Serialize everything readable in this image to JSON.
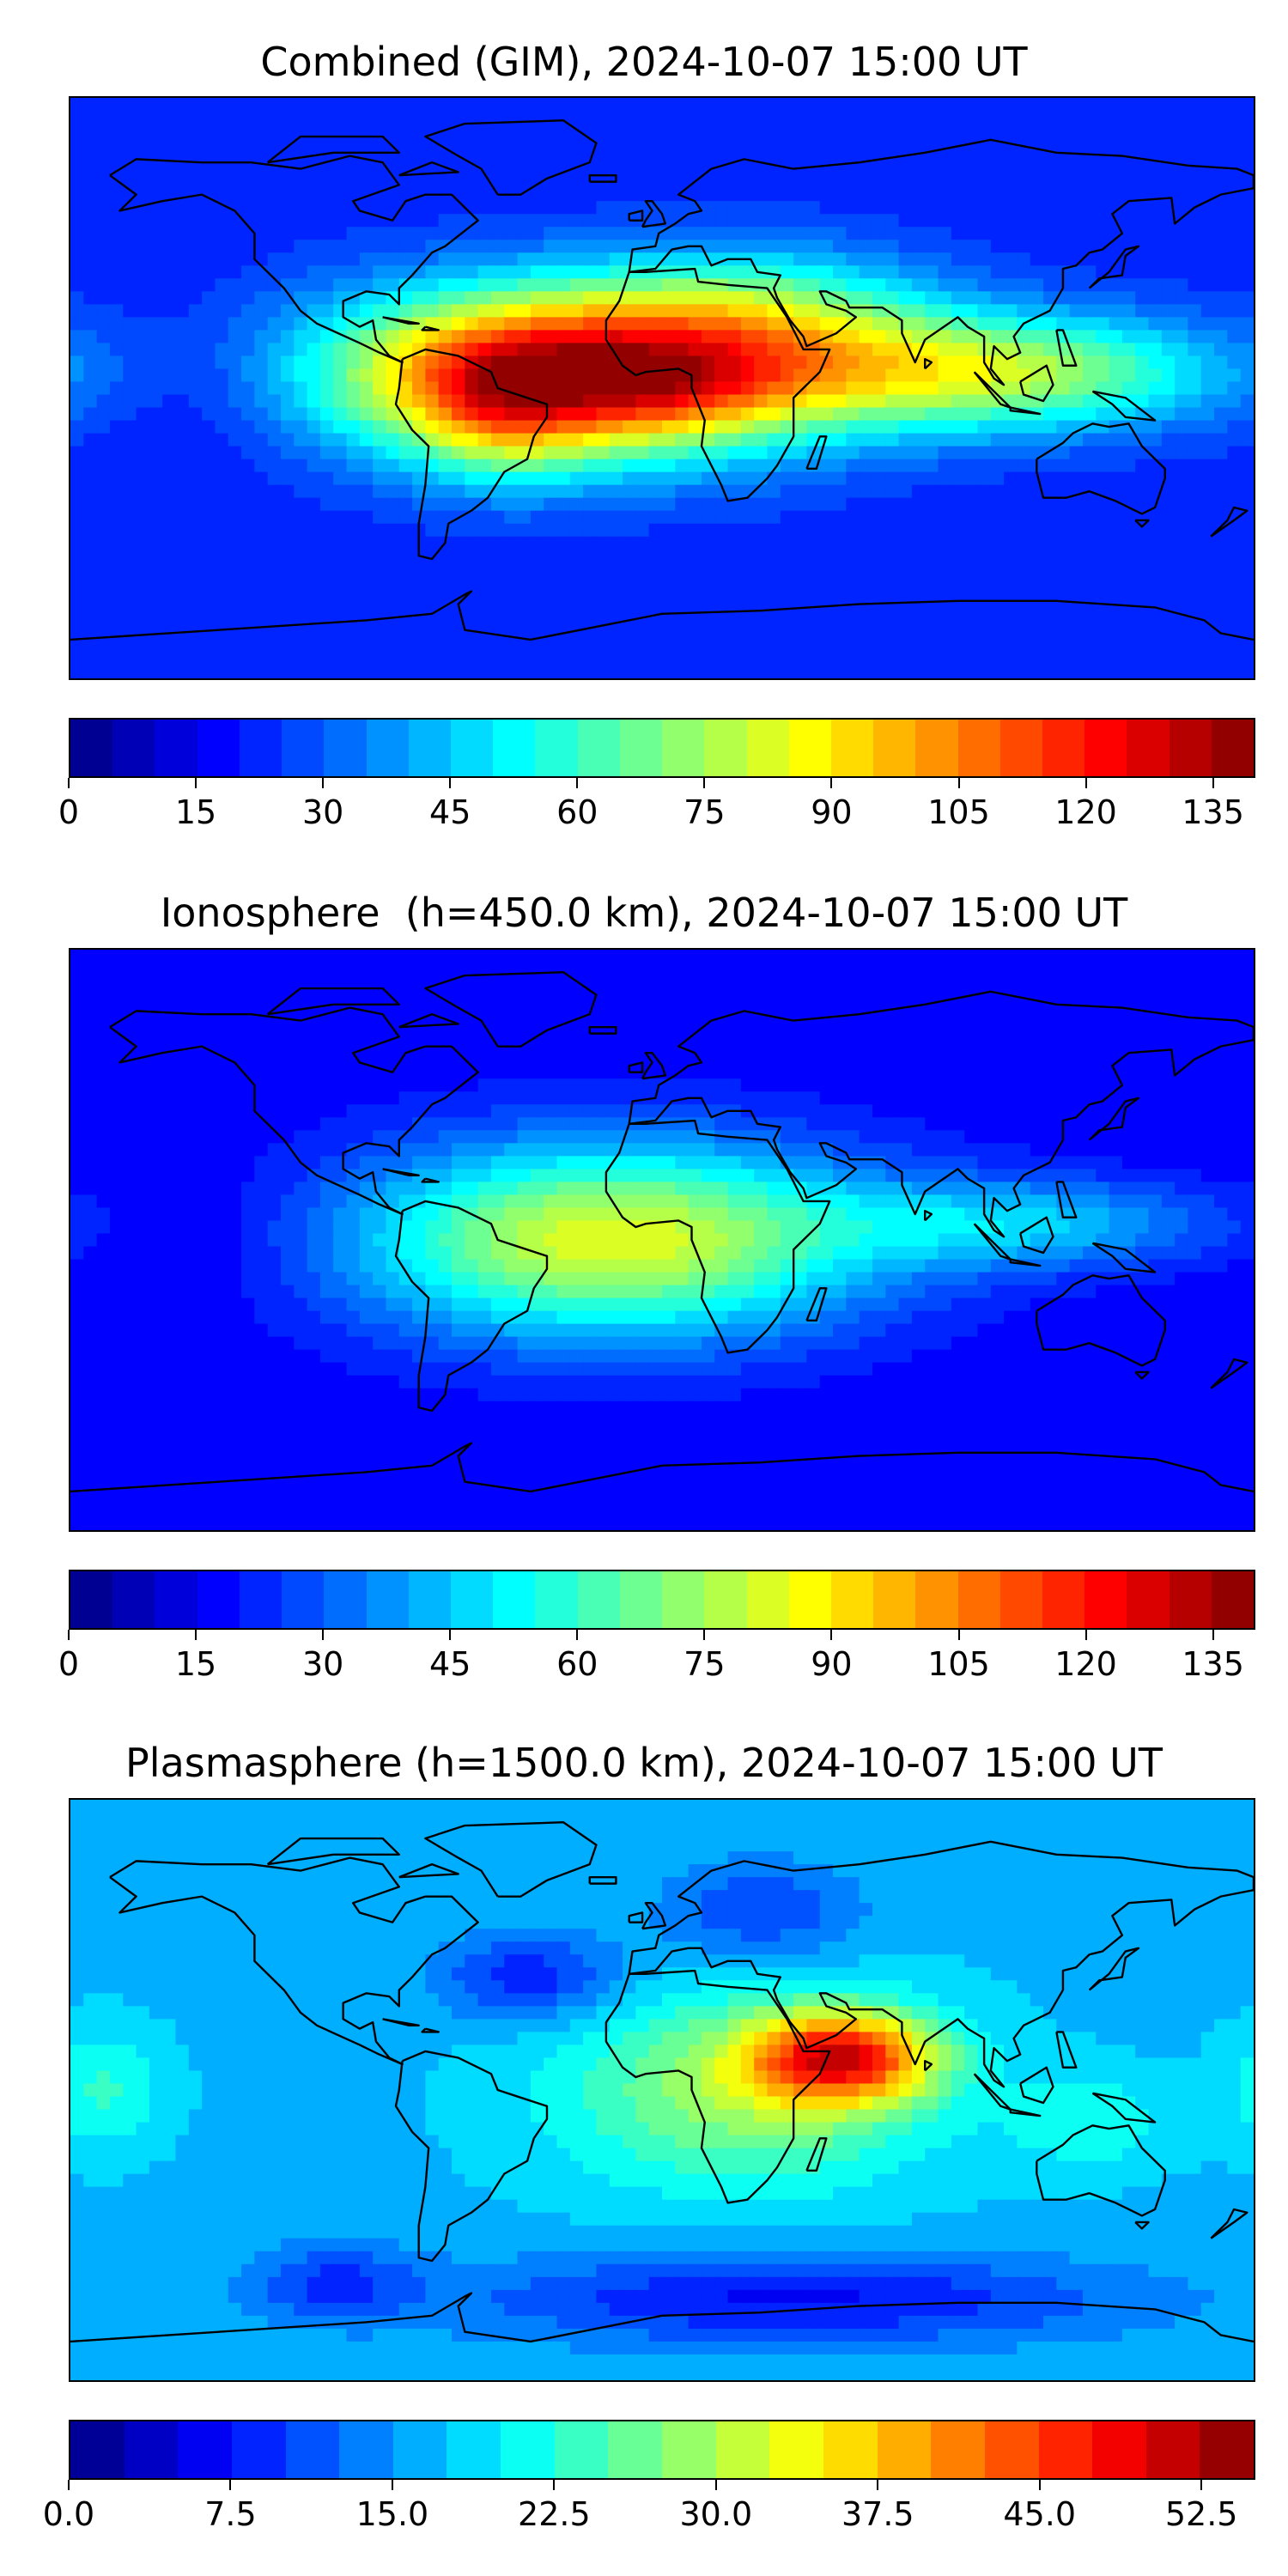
{
  "panels": [
    {
      "title": "Combined (GIM), 2024-10-07 15:00 UT",
      "colorbar": {
        "vmin": 0,
        "vmax": 140,
        "levels": 28,
        "tick_values": [
          0,
          15,
          30,
          45,
          60,
          75,
          90,
          105,
          120,
          135
        ],
        "tick_labels": [
          "0",
          "15",
          "30",
          "45",
          "60",
          "75",
          "90",
          "105",
          "120",
          "135"
        ]
      }
    },
    {
      "title": "Ionosphere  (h=450.0 km), 2024-10-07 15:00 UT",
      "colorbar": {
        "vmin": 0,
        "vmax": 140,
        "levels": 28,
        "tick_values": [
          0,
          15,
          30,
          45,
          60,
          75,
          90,
          105,
          120,
          135
        ],
        "tick_labels": [
          "0",
          "15",
          "30",
          "45",
          "60",
          "75",
          "90",
          "105",
          "120",
          "135"
        ]
      }
    },
    {
      "title": "Plasmasphere (h=1500.0 km), 2024-10-07 15:00 UT",
      "colorbar": {
        "vmin": 0,
        "vmax": 55,
        "levels": 22,
        "tick_values": [
          0,
          7.5,
          15,
          22.5,
          30,
          37.5,
          45,
          52.5
        ],
        "tick_labels": [
          "0.0",
          "7.5",
          "15.0",
          "22.5",
          "30.0",
          "37.5",
          "45.0",
          "52.5"
        ]
      }
    }
  ],
  "colormap": "jet",
  "chart_data": [
    {
      "type": "heatmap",
      "title": "Combined (GIM), 2024-10-07 15:00 UT",
      "map": "world, longitude -180 to 180, latitude -90 to 90",
      "value_range": [
        0,
        140
      ],
      "background_value": 22,
      "blobs": [
        {
          "lon": -25,
          "lat": 5,
          "value": 110,
          "rlon": 75,
          "rlat": 26
        },
        {
          "lon": 5,
          "lat": 0,
          "value": 10,
          "rlon": 28,
          "rlat": 12
        },
        {
          "lon": -50,
          "lat": -8,
          "value": 25,
          "rlon": 28,
          "rlat": 22
        },
        {
          "lon": 100,
          "lat": 5,
          "value": 55,
          "rlon": 70,
          "rlat": 18
        },
        {
          "lon": 35,
          "lat": 25,
          "value": 25,
          "rlon": 50,
          "rlat": 20
        },
        {
          "lon": -140,
          "lat": 0,
          "value": -8,
          "rlon": 30,
          "rlat": 25
        }
      ]
    },
    {
      "type": "heatmap",
      "title": "Ionosphere  (h=450.0 km), 2024-10-07 15:00 UT",
      "map": "world, longitude -180 to 180, latitude -90 to 90",
      "value_range": [
        0,
        140
      ],
      "background_value": 16,
      "blobs": [
        {
          "lon": -15,
          "lat": 0,
          "value": 68,
          "rlon": 78,
          "rlat": 30
        },
        {
          "lon": 110,
          "lat": 5,
          "value": 28,
          "rlon": 60,
          "rlat": 14
        },
        {
          "lon": -140,
          "lat": 0,
          "value": -5,
          "rlon": 30,
          "rlat": 25
        }
      ]
    },
    {
      "type": "heatmap",
      "title": "Plasmasphere (h=1500.0 km), 2024-10-07 15:00 UT",
      "map": "world, longitude -180 to 180, latitude -90 to 90",
      "value_range": [
        0,
        55
      ],
      "background_value": 17,
      "blobs": [
        {
          "lon": 55,
          "lat": 10,
          "value": 27,
          "rlon": 28,
          "rlat": 14
        },
        {
          "lon": 25,
          "lat": 0,
          "value": 12,
          "rlon": 55,
          "rlat": 30
        },
        {
          "lon": -40,
          "lat": 35,
          "value": -9,
          "rlon": 28,
          "rlat": 14
        },
        {
          "lon": 30,
          "lat": 55,
          "value": -7,
          "rlon": 30,
          "rlat": 16
        },
        {
          "lon": -170,
          "lat": 0,
          "value": 6,
          "rlon": 18,
          "rlat": 18
        },
        {
          "lon": 40,
          "lat": -65,
          "value": -10,
          "rlon": 100,
          "rlat": 14
        },
        {
          "lon": -100,
          "lat": -60,
          "value": -7,
          "rlon": 25,
          "rlat": 12
        },
        {
          "lon": 130,
          "lat": -10,
          "value": 5,
          "rlon": 25,
          "rlat": 15
        }
      ]
    }
  ]
}
